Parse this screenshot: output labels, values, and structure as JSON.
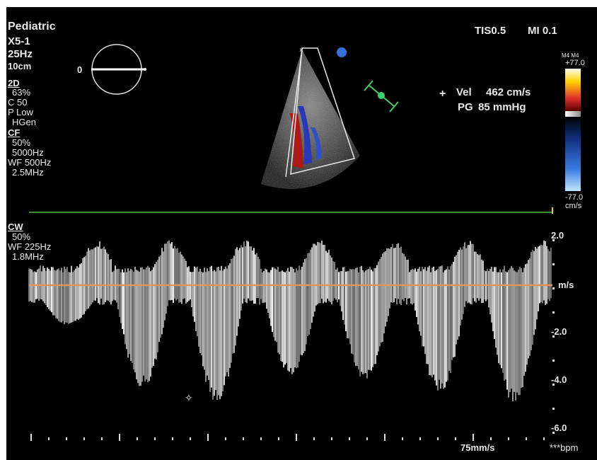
{
  "header": {
    "preset": "Pediatric",
    "transducer": "X5-1",
    "frame_rate": "25Hz",
    "depth": "10cm",
    "dial_value": "0",
    "tis": "TIS0.5",
    "mi": "MI 0.1"
  },
  "mode_2d": {
    "title": "2D",
    "gain": "63%",
    "compress": "C 50",
    "power": "P Low",
    "freq": "HGen"
  },
  "mode_cf": {
    "title": "CF",
    "gain": "50%",
    "prf": "5000Hz",
    "wall_filter": "WF 500Hz",
    "freq": "2.5MHz"
  },
  "mode_cw": {
    "title": "CW",
    "gain": "50%",
    "wall_filter": "WF 225Hz",
    "freq": "1.8MHz"
  },
  "measurement": {
    "marker": "+",
    "vel_label": "Vel",
    "vel_value": "462 cm/s",
    "pg_label": "PG",
    "pg_value": "85 mmHg"
  },
  "color_scale": {
    "map": "M4 M4",
    "top": "+77.0",
    "bottom": "-77.0",
    "unit": "cm/s"
  },
  "velocity_axis": {
    "unit": "m/s",
    "ticks": [
      "2.0",
      "-2.0",
      "-4.0",
      "-6.0"
    ]
  },
  "footer": {
    "sweep": "75mm/s",
    "hr": "***bpm"
  },
  "colors": {
    "baseline": "#e3935a",
    "ecg_line": "#4fbf3a",
    "text": "#e8e8e8"
  }
}
